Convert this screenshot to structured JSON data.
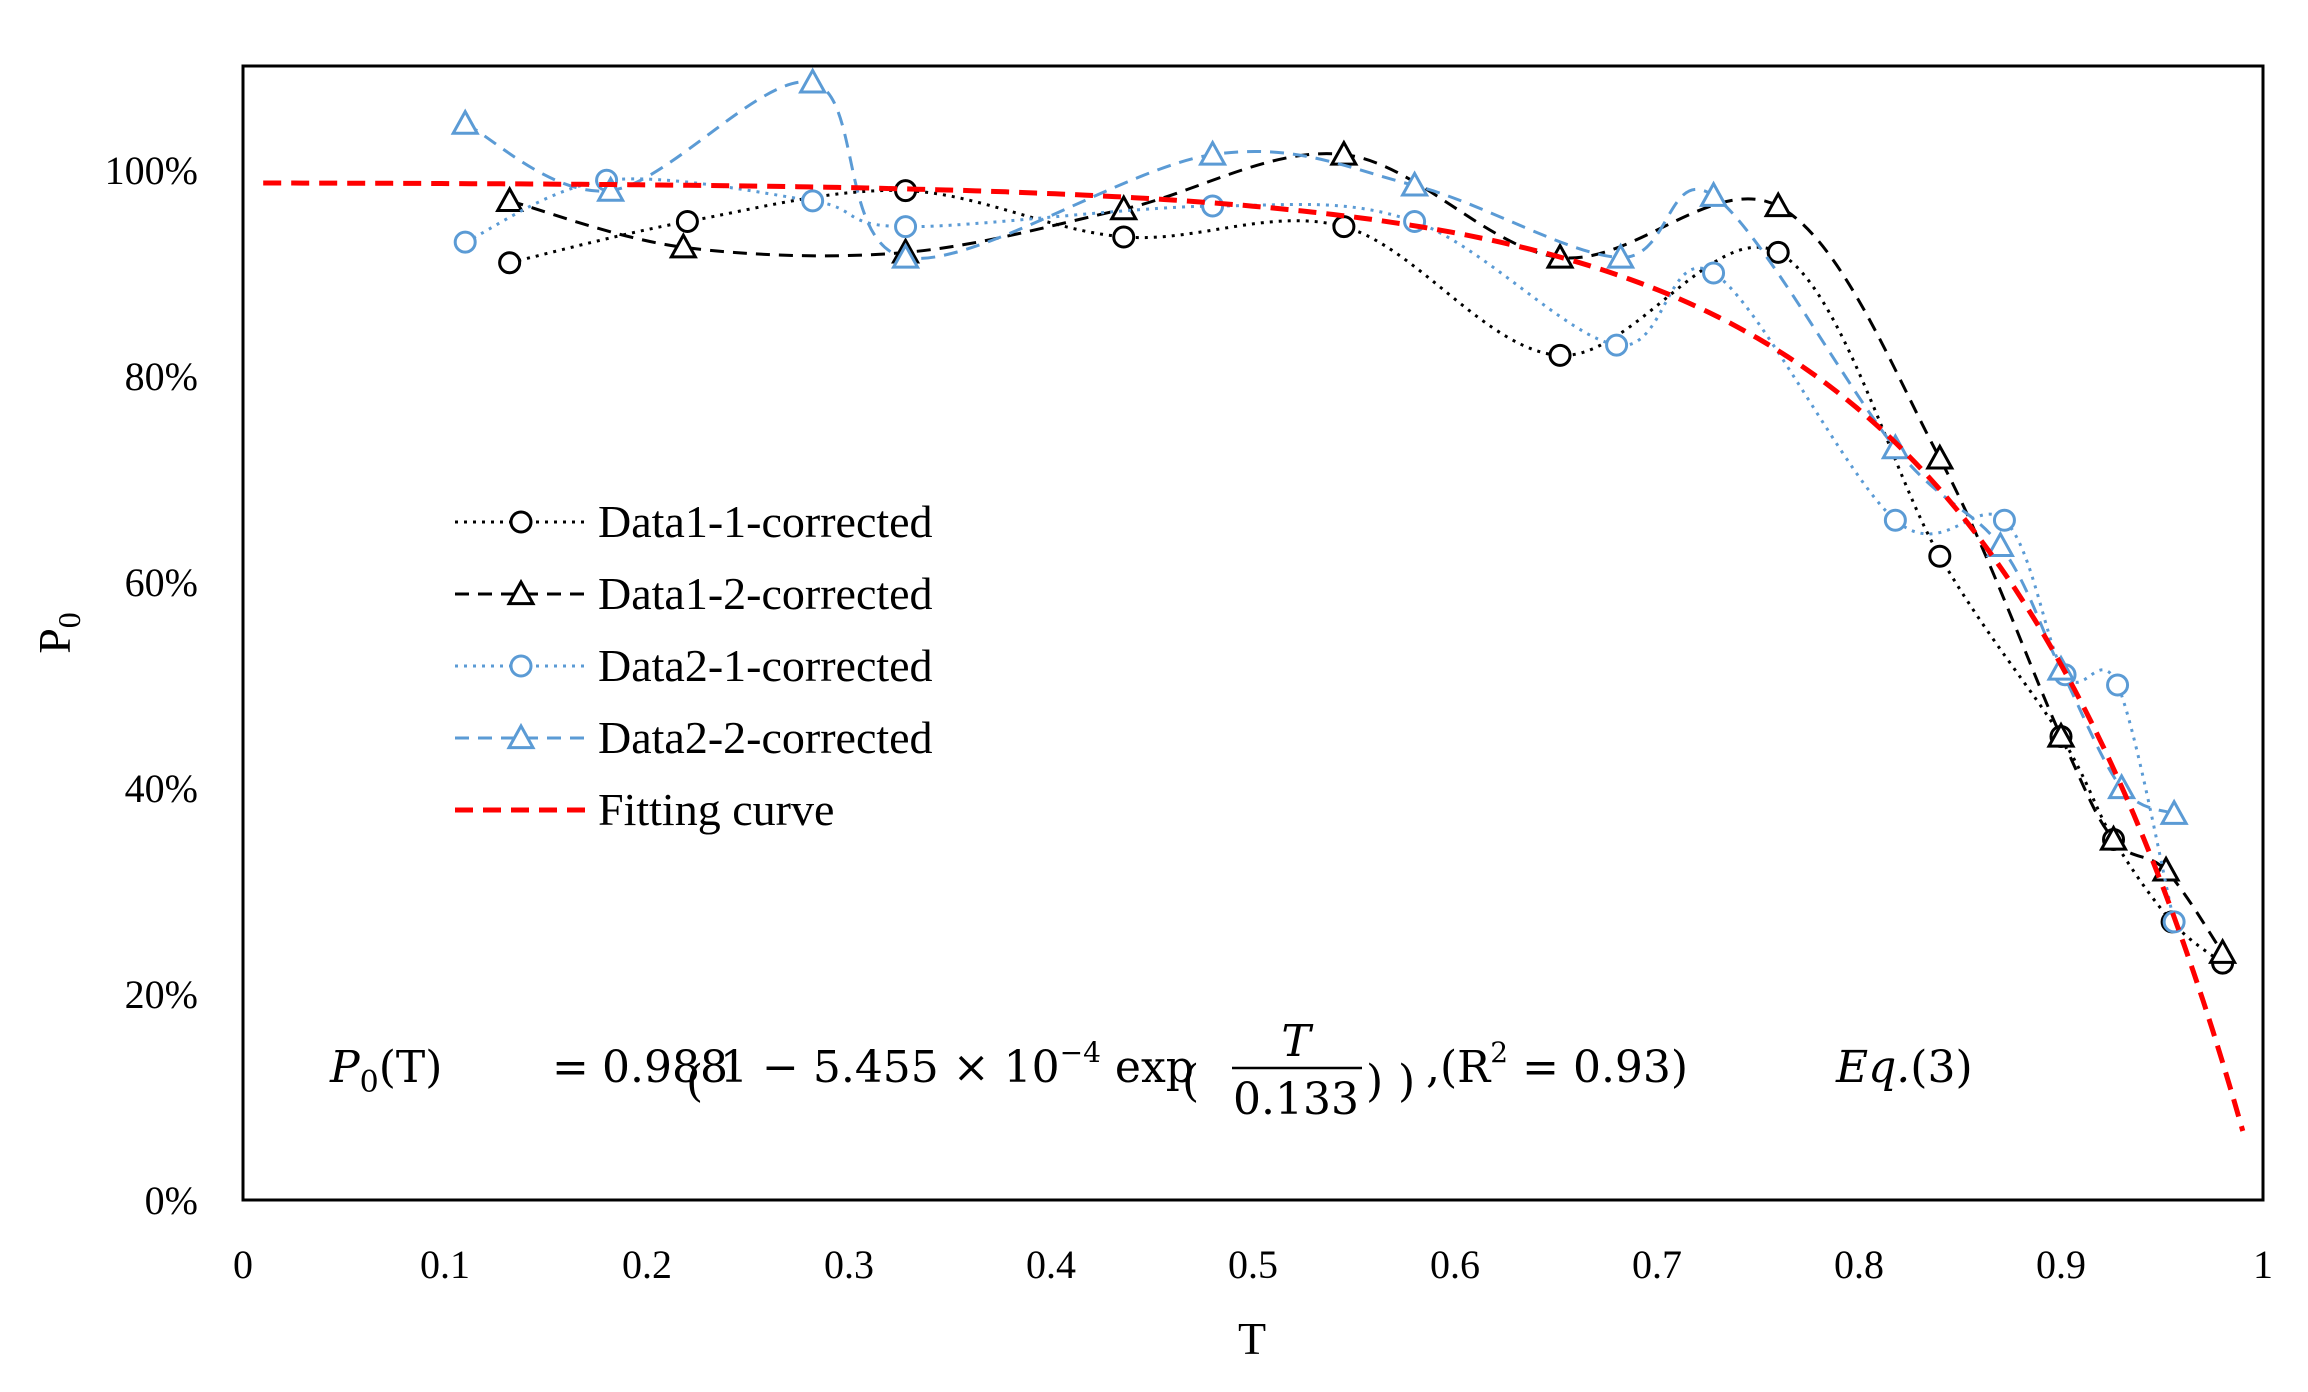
{
  "chart_data": {
    "type": "line",
    "title": "",
    "xlabel": "T",
    "ylabel": "P",
    "ylabel_sub": "0",
    "xlim": [
      0,
      1
    ],
    "ylim": [
      0,
      1.1
    ],
    "x_ticks": [
      {
        "v": 0,
        "label": "0"
      },
      {
        "v": 0.1,
        "label": "0.1"
      },
      {
        "v": 0.2,
        "label": "0.2"
      },
      {
        "v": 0.3,
        "label": "0.3"
      },
      {
        "v": 0.4,
        "label": "0.4"
      },
      {
        "v": 0.5,
        "label": "0.5"
      },
      {
        "v": 0.6,
        "label": "0.6"
      },
      {
        "v": 0.7,
        "label": "0.7"
      },
      {
        "v": 0.8,
        "label": "0.8"
      },
      {
        "v": 0.9,
        "label": "0.9"
      },
      {
        "v": 1,
        "label": "1"
      }
    ],
    "y_ticks": [
      {
        "v": 0,
        "label": "0%"
      },
      {
        "v": 0.2,
        "label": "20%"
      },
      {
        "v": 0.4,
        "label": "40%"
      },
      {
        "v": 0.6,
        "label": "60%"
      },
      {
        "v": 0.8,
        "label": "80%"
      },
      {
        "v": 1.0,
        "label": "100%"
      }
    ],
    "series": [
      {
        "name": "Data1-1-corrected",
        "color": "#000000",
        "marker": "circle",
        "dash": "dot",
        "x": [
          0.132,
          0.22,
          0.328,
          0.436,
          0.545,
          0.652,
          0.76,
          0.84,
          0.9,
          0.926,
          0.955,
          0.98
        ],
        "y": [
          0.91,
          0.95,
          0.98,
          0.935,
          0.945,
          0.82,
          0.92,
          0.625,
          0.45,
          0.35,
          0.27,
          0.23
        ]
      },
      {
        "name": "Data1-2-corrected",
        "color": "#000000",
        "marker": "triangle",
        "dash": "dash",
        "x": [
          0.132,
          0.218,
          0.328,
          0.436,
          0.545,
          0.652,
          0.76,
          0.84,
          0.9,
          0.926,
          0.952,
          0.98
        ],
        "y": [
          0.97,
          0.925,
          0.92,
          0.962,
          1.015,
          0.915,
          0.965,
          0.72,
          0.45,
          0.35,
          0.32,
          0.24
        ]
      },
      {
        "name": "Data2-1-corrected",
        "color": "#5B9BD5",
        "marker": "circle",
        "dash": "dot",
        "x": [
          0.11,
          0.18,
          0.282,
          0.328,
          0.48,
          0.58,
          0.68,
          0.728,
          0.818,
          0.872,
          0.902,
          0.928,
          0.956
        ],
        "y": [
          0.93,
          0.99,
          0.97,
          0.945,
          0.965,
          0.95,
          0.83,
          0.9,
          0.66,
          0.66,
          0.51,
          0.5,
          0.27
        ]
      },
      {
        "name": "Data2-2-corrected",
        "color": "#5B9BD5",
        "marker": "triangle",
        "dash": "dash",
        "x": [
          0.11,
          0.182,
          0.282,
          0.328,
          0.48,
          0.58,
          0.682,
          0.728,
          0.818,
          0.87,
          0.9,
          0.93,
          0.956
        ],
        "y": [
          1.045,
          0.98,
          1.085,
          0.915,
          1.015,
          0.985,
          0.915,
          0.975,
          0.73,
          0.635,
          0.515,
          0.4,
          0.375
        ]
      }
    ],
    "fit": {
      "name": "Fitting curve",
      "color": "#FF0000",
      "a": 0.988,
      "b": 0.0005455,
      "c": 0.133,
      "x_start": 0.01,
      "x_end": 0.99
    },
    "equation": {
      "lhs": "P",
      "lhs_sub": "0",
      "lhs_arg": "(T)",
      "equals": "=",
      "coef": "0.988",
      "one_minus": "1 − 5.455 × 10",
      "exp_power": "−4",
      "exp_word": "exp",
      "frac_num": "T",
      "frac_den": "0.133",
      "r2_open": ",(R",
      "r2_power": "2",
      "r2_close": " = 0.93)",
      "label_eq": "Eq.",
      "label_num": "(3)"
    }
  }
}
